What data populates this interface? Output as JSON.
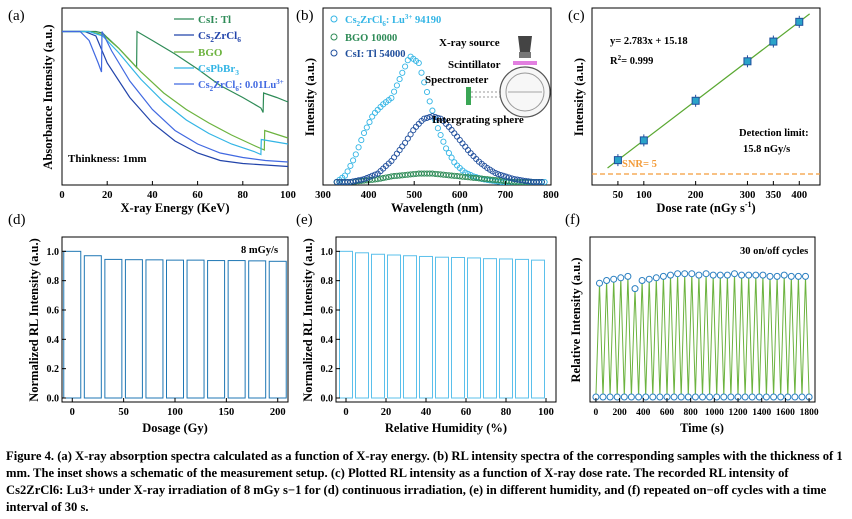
{
  "panels": [
    {
      "id": "a",
      "letter": "(a)",
      "chart_data": {
        "type": "line",
        "xlabel": "X-ray Energy (KeV)",
        "ylabel": "Absorbance Intensity (a.u.)",
        "xlim": [
          0,
          100
        ],
        "xticks": [
          0,
          20,
          40,
          60,
          80,
          100
        ],
        "ylim": [
          0,
          1
        ],
        "annotation": "Thinkness: 1mm",
        "legend": "top-right",
        "series": [
          {
            "name": "CsI: Tl",
            "color": "#2e8b57",
            "x": [
              0,
              15,
              18,
              20,
              25,
              33,
              33.2,
              40,
              50,
              60,
              70,
              80,
              88,
              89,
              89.2,
              95,
              100
            ],
            "y": [
              0.99,
              0.99,
              0.98,
              0.95,
              0.88,
              0.75,
              0.99,
              0.93,
              0.84,
              0.74,
              0.63,
              0.55,
              0.48,
              0.45,
              0.58,
              0.55,
              0.52
            ]
          },
          {
            "name": "Cs2ZrCl6",
            "color": "#2244aa",
            "x": [
              0,
              10,
              15,
              20,
              30,
              40,
              50,
              60,
              70,
              80,
              90,
              100
            ],
            "y": [
              0.99,
              0.99,
              0.96,
              0.78,
              0.55,
              0.38,
              0.26,
              0.18,
              0.13,
              0.11,
              0.1,
              0.09
            ]
          },
          {
            "name": "BGO",
            "color": "#6cb33f",
            "x": [
              0,
              12,
              18,
              25,
              35,
              45,
              55,
              65,
              75,
              85,
              89.5,
              89.7,
              100
            ],
            "y": [
              0.99,
              0.99,
              0.97,
              0.88,
              0.72,
              0.58,
              0.47,
              0.38,
              0.3,
              0.23,
              0.2,
              0.33,
              0.28
            ]
          },
          {
            "name": "CsPbBr3",
            "color": "#33b5e5",
            "x": [
              0,
              12,
              18,
              25,
              35,
              45,
              55,
              65,
              75,
              85,
              88,
              88.2,
              100
            ],
            "y": [
              0.99,
              0.99,
              0.96,
              0.85,
              0.67,
              0.52,
              0.4,
              0.31,
              0.24,
              0.19,
              0.17,
              0.27,
              0.24
            ]
          },
          {
            "name": "Cs2ZrCl6: 0.01Lu3+",
            "color": "#4169e1",
            "x": [
              0,
              8,
              12,
              16,
              17.5,
              17.7,
              22,
              30,
              40,
              50,
              60,
              70,
              80,
              90,
              100
            ],
            "y": [
              0.99,
              0.99,
              0.93,
              0.78,
              0.72,
              0.99,
              0.86,
              0.66,
              0.47,
              0.33,
              0.24,
              0.18,
              0.15,
              0.13,
              0.12
            ]
          }
        ]
      },
      "legend_labels": {
        "l1": {
          "base": "CsI: Tl",
          "sub": "",
          "sup": "",
          "tail": ""
        },
        "l2": {
          "base": "Cs",
          "sub": "2",
          "mid": "ZrCl",
          "sub2": "6",
          "sup": "",
          "tail": ""
        },
        "l3": {
          "base": "BGO"
        },
        "l4": {
          "base": "CsPbBr",
          "sub": "3"
        },
        "l5": {
          "base": "Cs",
          "sub": "2",
          "mid": "ZrCl",
          "sub2": "6",
          "tail": ": 0.01Lu",
          "sup": "3+"
        }
      }
    },
    {
      "id": "b",
      "letter": "(b)",
      "chart_data": {
        "type": "scatter",
        "xlabel": "Wavelength (nm)",
        "ylabel": "Intensity (a.u.)",
        "xlim": [
          300,
          800
        ],
        "xticks": [
          300,
          400,
          500,
          600,
          700,
          800
        ],
        "legend": "top-left",
        "series": [
          {
            "name": "Cs2ZrCl6: Lu3+ 94190",
            "color": "#33b5e5",
            "x": [
              330,
              350,
              370,
              390,
              410,
              430,
              450,
              470,
              490,
              510,
              530,
              550,
              570,
              590,
              610,
              630,
              650,
              670,
              690,
              710,
              730,
              750,
              770,
              790
            ],
            "y": [
              0.0,
              0.05,
              0.18,
              0.35,
              0.48,
              0.55,
              0.6,
              0.75,
              0.9,
              0.85,
              0.62,
              0.4,
              0.24,
              0.13,
              0.07,
              0.04,
              0.02,
              0.01,
              0.0,
              0.0,
              0.0,
              0.0,
              0.0,
              0.0
            ]
          },
          {
            "name": "BGO 10000",
            "color": "#2e8b57",
            "x": [
              330,
              360,
              390,
              420,
              450,
              480,
              510,
              540,
              570,
              600,
              630,
              660,
              690,
              720,
              750,
              780
            ],
            "y": [
              0.0,
              0.0,
              0.01,
              0.02,
              0.04,
              0.05,
              0.06,
              0.06,
              0.05,
              0.04,
              0.03,
              0.02,
              0.01,
              0.0,
              0.0,
              0.0
            ]
          },
          {
            "name": "CsI: Tl 54000",
            "color": "#1f4e9c",
            "x": [
              330,
              360,
              390,
              420,
              450,
              480,
              500,
              520,
              540,
              560,
              580,
              600,
              620,
              640,
              660,
              680,
              700,
              720,
              740,
              760,
              780
            ],
            "y": [
              0.0,
              0.0,
              0.02,
              0.06,
              0.15,
              0.28,
              0.38,
              0.45,
              0.47,
              0.45,
              0.38,
              0.3,
              0.22,
              0.15,
              0.1,
              0.06,
              0.04,
              0.02,
              0.01,
              0.0,
              0.0
            ]
          }
        ]
      },
      "legend_labels": {
        "l1": {
          "base": "Cs",
          "sub": "2",
          "mid": "ZrCl",
          "sub2": "6",
          "tail": ": Lu",
          "sup": "3+",
          "end": " 94190"
        },
        "l2": {
          "base": "BGO  10000"
        },
        "l3": {
          "base": "CsI: Tl 54000"
        }
      },
      "inset": {
        "source": "X-ray source",
        "scintillator": "Scintillator",
        "spectrometer": "Spectrometer",
        "sphere": "Intergrating sphere"
      }
    },
    {
      "id": "c",
      "letter": "(c)",
      "chart_data": {
        "type": "scatter",
        "xlabel": "Dose rate (nGy s",
        "xlabel_sup": "-1",
        "xlabel_end": ")",
        "ylabel": "Intensity (a.u.)",
        "xlim": [
          0,
          440
        ],
        "xticks": [
          50,
          100,
          200,
          300,
          350,
          400
        ],
        "x": [
          50,
          100,
          200,
          300,
          350,
          400
        ],
        "y": [
          154,
          293,
          572,
          850,
          989,
          1128
        ],
        "fit": {
          "slope": 2.783,
          "intercept": 15.18,
          "r2": 0.999
        },
        "snr_line": 5
      },
      "equation": "y= 2.783x + 15.18",
      "r2_label": "R",
      "r2_sup": "2",
      "r2_value": "= 0.999",
      "detection_label": "Detection limit:",
      "detection_value": "15.8 nGy/s",
      "snr_label": "SNR= 5"
    },
    {
      "id": "d",
      "letter": "(d)",
      "chart_data": {
        "type": "bar",
        "xlabel": "Dosage (Gy)",
        "ylabel": "Normalized RL Intensity (a.u.)",
        "xlim": [
          -10,
          210
        ],
        "ylim": [
          0,
          1.05
        ],
        "xticks": [
          0,
          50,
          100,
          150,
          200
        ],
        "yticks": [
          0.0,
          0.2,
          0.4,
          0.6,
          0.8,
          1.0
        ],
        "x": [
          0,
          20,
          40,
          60,
          80,
          100,
          120,
          140,
          160,
          180,
          200
        ],
        "values": [
          1.0,
          0.97,
          0.945,
          0.943,
          0.942,
          0.94,
          0.94,
          0.937,
          0.937,
          0.935,
          0.932
        ],
        "color": "#1f77b4"
      },
      "annotation": "8 mGy/s"
    },
    {
      "id": "e",
      "letter": "(e)",
      "chart_data": {
        "type": "bar",
        "xlabel": "Relative Humidity (%)",
        "ylabel": "Normalized RL Intensity (a.u.)",
        "xlim": [
          -5,
          105
        ],
        "ylim": [
          0,
          1.05
        ],
        "xticks": [
          0,
          20,
          40,
          60,
          80,
          100
        ],
        "yticks": [
          0.0,
          0.2,
          0.4,
          0.6,
          0.8,
          1.0
        ],
        "x": [
          0,
          8,
          16,
          24,
          32,
          40,
          48,
          56,
          64,
          72,
          80,
          88,
          96
        ],
        "values": [
          1.0,
          0.99,
          0.98,
          0.975,
          0.97,
          0.965,
          0.96,
          0.958,
          0.955,
          0.95,
          0.948,
          0.945,
          0.94
        ],
        "color": "#5bc0eb"
      }
    },
    {
      "id": "f",
      "letter": "(f)",
      "chart_data": {
        "type": "line",
        "xlabel": "Time (s)",
        "ylabel": "Relative Intensity (a.u.)",
        "xlim": [
          -50,
          1850
        ],
        "xticks": [
          0,
          200,
          400,
          600,
          800,
          1000,
          1200,
          1400,
          1600,
          1800
        ],
        "ylim": [
          0,
          1.1
        ],
        "cycles": 30,
        "period_s": 60,
        "on_levels": [
          0.84,
          0.86,
          0.87,
          0.88,
          0.89,
          0.8,
          0.86,
          0.87,
          0.88,
          0.89,
          0.9,
          0.91,
          0.91,
          0.91,
          0.9,
          0.91,
          0.9,
          0.9,
          0.9,
          0.91,
          0.9,
          0.9,
          0.9,
          0.9,
          0.89,
          0.89,
          0.9,
          0.89,
          0.89,
          0.89
        ],
        "off_level": 0.0,
        "line_color": "#6cb33f",
        "marker_color": "#2a7fc1"
      },
      "annotation": "30 on/off cycles"
    }
  ],
  "caption": {
    "prefix": "Figure 4.",
    "body": "(a) X-ray absorption spectra calculated as a function of X-ray energy. (b) RL intensity spectra of the corresponding samples with the thickness of 1 mm. The inset shows a schematic of the measurement setup. (c) Plotted RL intensity as a function of X-ray dose rate. The recorded RL intensity of Cs2ZrCl6: Lu3+ under X-ray irradiation of 8 mGy s−1 for (d) continuous irradiation, (e) in different humidity, and (f) repeated on−off cycles with a time interval of 30 s."
  }
}
